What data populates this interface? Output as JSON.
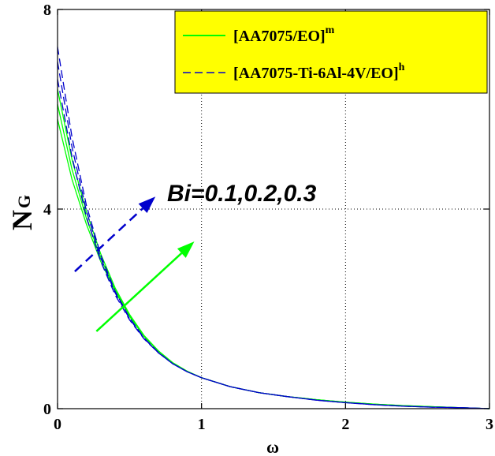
{
  "chart_data": {
    "type": "line",
    "title": "",
    "xlabel": "ω",
    "ylabel_main": "N",
    "ylabel_sub": "G",
    "xlim": [
      0,
      3
    ],
    "ylim": [
      0,
      8
    ],
    "xticks": [
      0,
      1,
      2,
      3
    ],
    "yticks": [
      0,
      4,
      8
    ],
    "xtick_labels": [
      "0",
      "1",
      "2",
      "3"
    ],
    "ytick_labels": [
      "0",
      "4",
      "8"
    ],
    "grid": "dotted",
    "legend_placement": "top-right",
    "legend_background": "#ffff00",
    "annotation": "Bi=0.1,0.2,0.3",
    "x": [
      0,
      0.1,
      0.2,
      0.3,
      0.4,
      0.5,
      0.6,
      0.7,
      0.8,
      0.9,
      1.0,
      1.2,
      1.4,
      1.6,
      1.8,
      2.0,
      2.2,
      2.4,
      2.6,
      2.8,
      3.0
    ],
    "series": [
      {
        "name": "[AA7075/EO]",
        "superscript": "m",
        "group": "mono",
        "color": "#00ff00",
        "style": "solid",
        "curves": [
          [
            5.8,
            4.6,
            3.7,
            2.95,
            2.35,
            1.85,
            1.45,
            1.15,
            0.92,
            0.75,
            0.62,
            0.44,
            0.32,
            0.24,
            0.18,
            0.13,
            0.09,
            0.06,
            0.04,
            0.02,
            0.0
          ],
          [
            6.1,
            4.8,
            3.82,
            3.02,
            2.38,
            1.87,
            1.46,
            1.15,
            0.92,
            0.75,
            0.62,
            0.44,
            0.32,
            0.24,
            0.18,
            0.13,
            0.09,
            0.06,
            0.04,
            0.02,
            0.0
          ],
          [
            6.4,
            5.0,
            3.95,
            3.1,
            2.42,
            1.89,
            1.47,
            1.16,
            0.92,
            0.75,
            0.62,
            0.44,
            0.32,
            0.24,
            0.18,
            0.13,
            0.09,
            0.06,
            0.04,
            0.02,
            0.0
          ]
        ]
      },
      {
        "name": "[AA7075-Ti-6Al-4V/EO]",
        "superscript": "h",
        "group": "hybrid",
        "color": "#0000cc",
        "style": "dashed",
        "curves": [
          [
            6.6,
            5.05,
            3.85,
            2.95,
            2.28,
            1.78,
            1.4,
            1.12,
            0.9,
            0.74,
            0.62,
            0.44,
            0.32,
            0.24,
            0.17,
            0.12,
            0.08,
            0.05,
            0.03,
            0.02,
            0.0
          ],
          [
            6.95,
            5.25,
            3.97,
            3.02,
            2.32,
            1.8,
            1.41,
            1.12,
            0.9,
            0.74,
            0.62,
            0.44,
            0.32,
            0.24,
            0.17,
            0.12,
            0.08,
            0.05,
            0.03,
            0.02,
            0.0
          ],
          [
            7.25,
            5.45,
            4.08,
            3.08,
            2.35,
            1.82,
            1.42,
            1.13,
            0.9,
            0.74,
            0.62,
            0.44,
            0.32,
            0.24,
            0.17,
            0.12,
            0.08,
            0.05,
            0.03,
            0.02,
            0.0
          ]
        ]
      }
    ],
    "arrows": [
      {
        "group": "hybrid",
        "color": "#0000cc",
        "style": "dashed",
        "from": [
          0.12,
          2.75
        ],
        "to": [
          0.68,
          4.25
        ]
      },
      {
        "group": "mono",
        "color": "#00ff00",
        "style": "solid",
        "from": [
          0.27,
          1.55
        ],
        "to": [
          0.95,
          3.35
        ]
      }
    ]
  }
}
